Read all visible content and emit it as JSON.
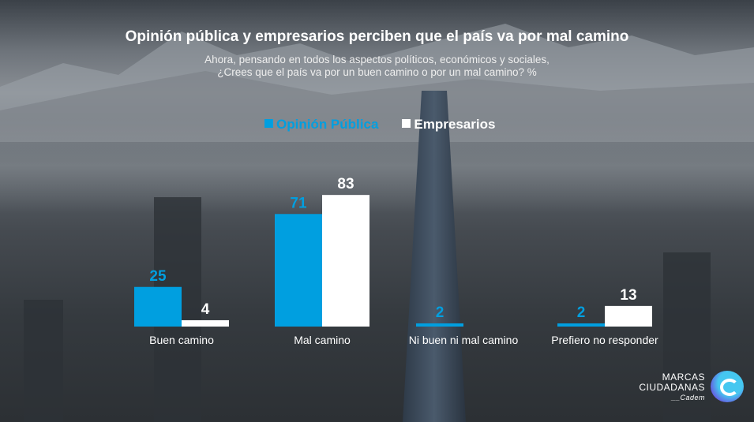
{
  "header": {
    "title": "Opinión pública y empresarios perciben que el país va por mal camino",
    "subtitle_line1": "Ahora, pensando en todos los aspectos políticos, económicos y sociales,",
    "subtitle_line2": "¿Crees que el país va por un buen camino o por un mal camino? %"
  },
  "logo": {
    "line1": "MARCAS",
    "line2": "CIUDADANAS",
    "line3": "__Cadem"
  },
  "chart_data": {
    "type": "bar",
    "title": "Opinión pública y empresarios perciben que el país va por mal camino",
    "categories": [
      "Buen camino",
      "Mal camino",
      "Ni buen ni mal camino",
      "Prefiero no responder"
    ],
    "series": [
      {
        "name": "Opinión Pública",
        "color": "#009fe0",
        "values": [
          25,
          71,
          2,
          2
        ]
      },
      {
        "name": "Empresarios",
        "color": "#ffffff",
        "values": [
          4,
          83,
          0,
          13
        ]
      }
    ],
    "ylim": [
      0,
      90
    ],
    "grid": false,
    "legend": "top-center",
    "xlabel": "",
    "ylabel": "%"
  }
}
